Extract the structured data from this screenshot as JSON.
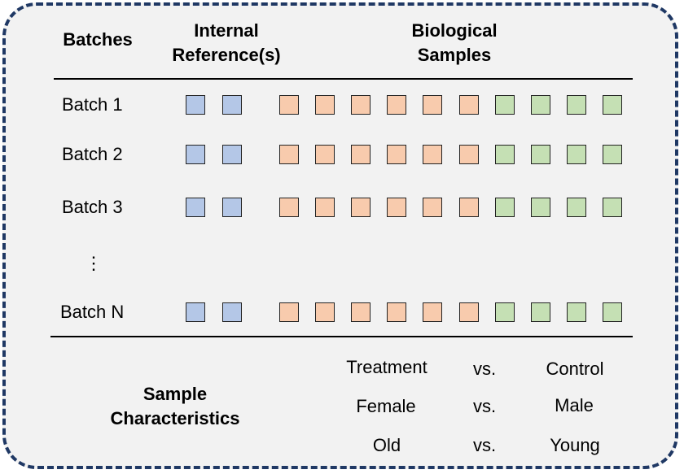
{
  "headers": {
    "batches": "Batches",
    "internal_ref_line1": "Internal",
    "internal_ref_line2": "Reference(s)",
    "bio_line1": "Biological",
    "bio_line2": "Samples"
  },
  "batches": [
    {
      "label": "Batch 1",
      "refs": 2,
      "treatment": 6,
      "control": 4
    },
    {
      "label": "Batch 2",
      "refs": 2,
      "treatment": 6,
      "control": 4
    },
    {
      "label": "Batch 3",
      "refs": 2,
      "treatment": 6,
      "control": 4
    },
    {
      "label": "Batch N",
      "refs": 2,
      "treatment": 6,
      "control": 4
    }
  ],
  "ellipsis": "⋮",
  "sample_characteristics": {
    "title_line1": "Sample",
    "title_line2": "Characteristics",
    "rows": [
      {
        "left": "Treatment",
        "vs": "vs.",
        "right": "Control"
      },
      {
        "left": "Female",
        "vs": "vs.",
        "right": "Male"
      },
      {
        "left": "Old",
        "vs": "vs.",
        "right": "Young"
      }
    ]
  },
  "colors": {
    "reference": "#b4c7e7",
    "treatment": "#f8cbad",
    "control": "#c5e0b4",
    "border": "#1f3864"
  }
}
